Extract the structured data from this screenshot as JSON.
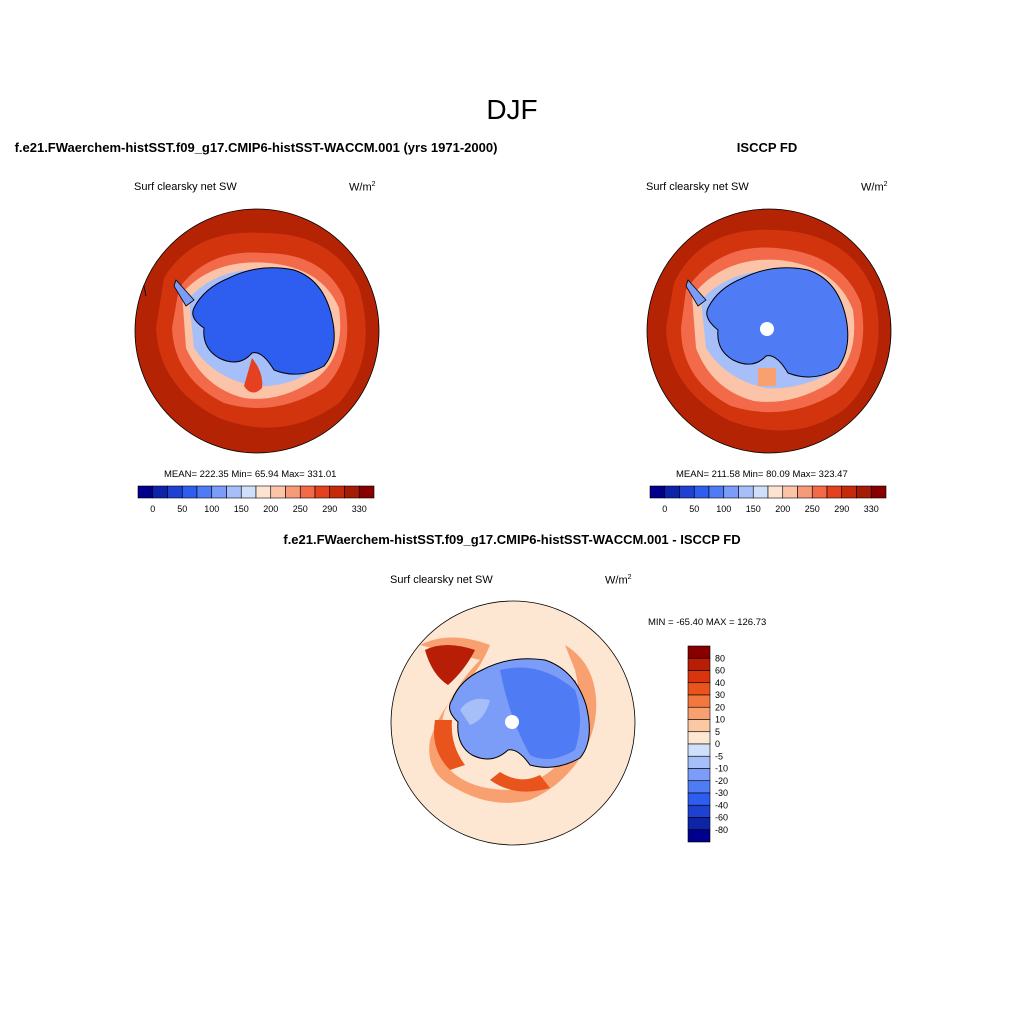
{
  "super_title": "DJF",
  "panels": [
    {
      "title": "f.e21.FWaerchem-histSST.f09_g17.CMIP6-histSST-WACCM.001 (yrs 1971-2000)",
      "variable": "Surf clearsky net SW",
      "units": "W/m",
      "units_sup": "2",
      "stats": "MEAN= 222.35  Min=  65.94  Max= 331.01"
    },
    {
      "title": "ISCCP FD",
      "variable": "Surf clearsky net SW",
      "units": "W/m",
      "units_sup": "2",
      "stats": "MEAN= 211.58  Min=  80.09  Max= 323.47"
    },
    {
      "title": "f.e21.FWaerchem-histSST.f09_g17.CMIP6-histSST-WACCM.001 - ISCCP FD",
      "variable": "Surf clearsky net SW",
      "units": "W/m",
      "units_sup": "2",
      "stats": "MIN = -65.40 MAX = 126.73"
    }
  ],
  "colorbar_abs": {
    "colors": [
      "#00008c",
      "#0d23a8",
      "#1e41d2",
      "#2e5ef0",
      "#4f7bf5",
      "#7b9cf7",
      "#a6bff8",
      "#cfe0fa",
      "#fde4d2",
      "#fbc3a7",
      "#f79a78",
      "#f26a49",
      "#e5401f",
      "#c52a0a",
      "#a51c06",
      "#870000"
    ],
    "labels": [
      "0",
      "50",
      "100",
      "150",
      "200",
      "250",
      "290",
      "330"
    ]
  },
  "colorbar_diff": {
    "colors": [
      "#870000",
      "#b81d05",
      "#d8350f",
      "#e9541d",
      "#f3783f",
      "#f8a06f",
      "#fbc8a4",
      "#fde6d2",
      "#cfe0fa",
      "#a6bff8",
      "#7b9cf7",
      "#4f7bf5",
      "#2e5ef0",
      "#1e41d2",
      "#0d23a8",
      "#00008c"
    ],
    "labels": [
      "80",
      "60",
      "40",
      "30",
      "20",
      "10",
      "5",
      "0",
      "-5",
      "-10",
      "-20",
      "-30",
      "-40",
      "-60",
      "-80"
    ]
  },
  "map_colors": {
    "ocean_dark": "#b52305",
    "ocean_mid": "#d2350e",
    "ocean_light": "#f26a49",
    "ice_edge": "#fbc3a7",
    "ice_blue_light": "#a6bff8",
    "land_blue": "#2e5ef0",
    "land_blue_obs": "#4f7bf5",
    "diff_bg": "#fde6d2",
    "diff_red": "#e9541d",
    "diff_blue": "#4f7bf5"
  }
}
